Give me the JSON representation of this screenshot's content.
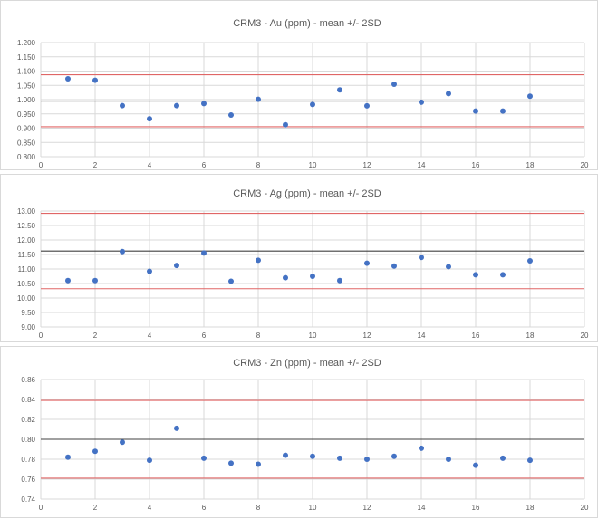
{
  "chart_data": [
    {
      "type": "scatter",
      "title": "CRM3 - Au (ppm) - mean +/- 2SD",
      "xlim": [
        0,
        20
      ],
      "x_ticks": [
        "0",
        "2",
        "4",
        "6",
        "8",
        "10",
        "12",
        "14",
        "16",
        "18",
        "20"
      ],
      "ylim": [
        0.8,
        1.2
      ],
      "y_ticks": [
        "0.800",
        "0.850",
        "0.900",
        "0.950",
        "1.000",
        "1.050",
        "1.100",
        "1.150",
        "1.200"
      ],
      "grid": true,
      "reference_lines": [
        {
          "role": "mean",
          "value": 0.995,
          "color": "#404040"
        },
        {
          "role": "upper",
          "value": 1.087,
          "color": "#e06666"
        },
        {
          "role": "lower",
          "value": 0.905,
          "color": "#e06666"
        }
      ],
      "x": [
        1,
        2,
        3,
        4,
        5,
        6,
        7,
        8,
        9,
        10,
        11,
        12,
        13,
        14,
        15,
        16,
        17,
        18
      ],
      "y": [
        1.073,
        1.068,
        0.979,
        0.933,
        0.979,
        0.986,
        0.946,
        1.001,
        0.912,
        0.983,
        1.034,
        0.978,
        1.054,
        0.991,
        1.021,
        0.96,
        0.96,
        1.012
      ],
      "marker_color": "#4472c4"
    },
    {
      "type": "scatter",
      "title": "CRM3 - Ag (ppm) - mean +/- 2SD",
      "xlim": [
        0,
        20
      ],
      "x_ticks": [
        "0",
        "2",
        "4",
        "6",
        "8",
        "10",
        "12",
        "14",
        "16",
        "18",
        "20"
      ],
      "ylim": [
        9.0,
        13.0
      ],
      "y_ticks": [
        "9.00",
        "9.50",
        "10.00",
        "10.50",
        "11.00",
        "11.50",
        "12.00",
        "12.50",
        "13.00"
      ],
      "grid": true,
      "reference_lines": [
        {
          "role": "mean",
          "value": 11.62,
          "color": "#404040"
        },
        {
          "role": "upper",
          "value": 12.92,
          "color": "#e06666"
        },
        {
          "role": "lower",
          "value": 10.32,
          "color": "#e06666"
        }
      ],
      "x": [
        1,
        2,
        3,
        4,
        5,
        6,
        7,
        8,
        9,
        10,
        11,
        12,
        13,
        14,
        15,
        16,
        17,
        18
      ],
      "y": [
        10.6,
        10.6,
        11.6,
        10.92,
        11.12,
        11.55,
        10.58,
        11.3,
        10.7,
        10.75,
        10.6,
        11.2,
        11.1,
        11.4,
        11.08,
        10.8,
        10.8,
        11.28
      ],
      "marker_color": "#4472c4"
    },
    {
      "type": "scatter",
      "title": "CRM3 - Zn (ppm) - mean +/- 2SD",
      "xlim": [
        0,
        20
      ],
      "x_ticks": [
        "0",
        "2",
        "4",
        "6",
        "8",
        "10",
        "12",
        "14",
        "16",
        "18",
        "20"
      ],
      "ylim": [
        0.74,
        0.86
      ],
      "y_ticks": [
        "0.74",
        "0.76",
        "0.78",
        "0.80",
        "0.82",
        "0.84",
        "0.86"
      ],
      "grid": true,
      "reference_lines": [
        {
          "role": "mean",
          "value": 0.8,
          "color": "#404040"
        },
        {
          "role": "upper",
          "value": 0.839,
          "color": "#e06666"
        },
        {
          "role": "lower",
          "value": 0.761,
          "color": "#e06666"
        }
      ],
      "x": [
        1,
        2,
        3,
        4,
        5,
        6,
        7,
        8,
        9,
        10,
        11,
        12,
        13,
        14,
        15,
        16,
        17,
        18
      ],
      "y": [
        0.782,
        0.788,
        0.797,
        0.779,
        0.811,
        0.781,
        0.776,
        0.775,
        0.784,
        0.783,
        0.781,
        0.78,
        0.783,
        0.791,
        0.78,
        0.774,
        0.781,
        0.779
      ],
      "marker_color": "#4472c4"
    }
  ]
}
